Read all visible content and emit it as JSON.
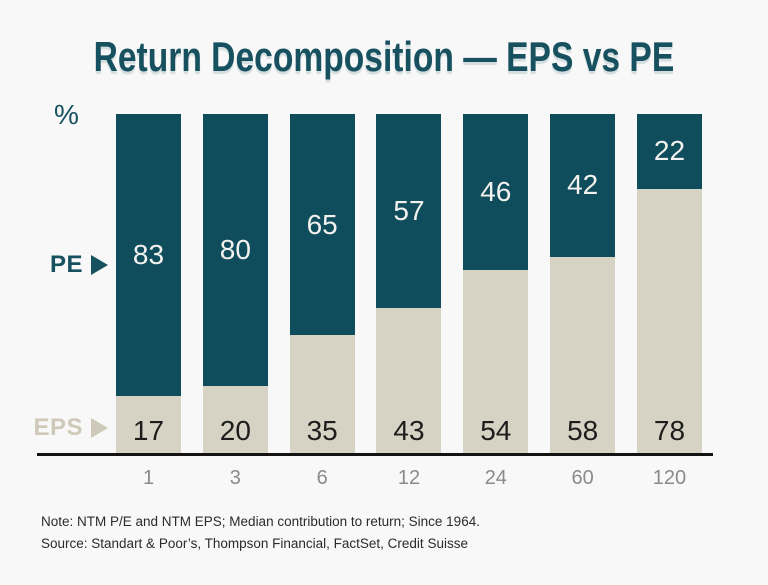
{
  "title": "Return Decomposition — EPS vs PE",
  "y_axis": {
    "unit_label": "%"
  },
  "legend": {
    "pe_label": "PE",
    "eps_label": "EPS"
  },
  "chart_data": {
    "type": "bar",
    "stacked": true,
    "stack_total": 100,
    "categories": [
      "1",
      "3",
      "6",
      "12",
      "24",
      "60",
      "120"
    ],
    "series": [
      {
        "name": "PE",
        "color": "#0F4D5C",
        "text_color": "#F2F1EE",
        "values": [
          83,
          80,
          65,
          57,
          46,
          42,
          22
        ]
      },
      {
        "name": "EPS",
        "color": "#D6D2C4",
        "text_color": "#1D1D1B",
        "values": [
          17,
          20,
          35,
          43,
          54,
          58,
          78
        ]
      }
    ],
    "title": "Return Decomposition — EPS vs PE",
    "xlabel": "",
    "ylabel": "%",
    "ylim": [
      0,
      100
    ],
    "grid": false,
    "legend_position": "left"
  },
  "footnotes": {
    "note": "Note: NTM P/E and NTM EPS; Median contribution to return; Since 1964.",
    "source": "Source: Standart & Poor’s, Thompson Financial, FactSet, Credit Suisse"
  },
  "colors": {
    "background": "#F8F8F8",
    "pe_fill": "#0F4D5C",
    "eps_fill": "#D6D2C4",
    "title_text": "#17505F",
    "axis_line": "#131313",
    "tick_text": "#8A8A8A",
    "pe_legend_text": "#17505F",
    "eps_legend_text": "#CFC9BA"
  }
}
